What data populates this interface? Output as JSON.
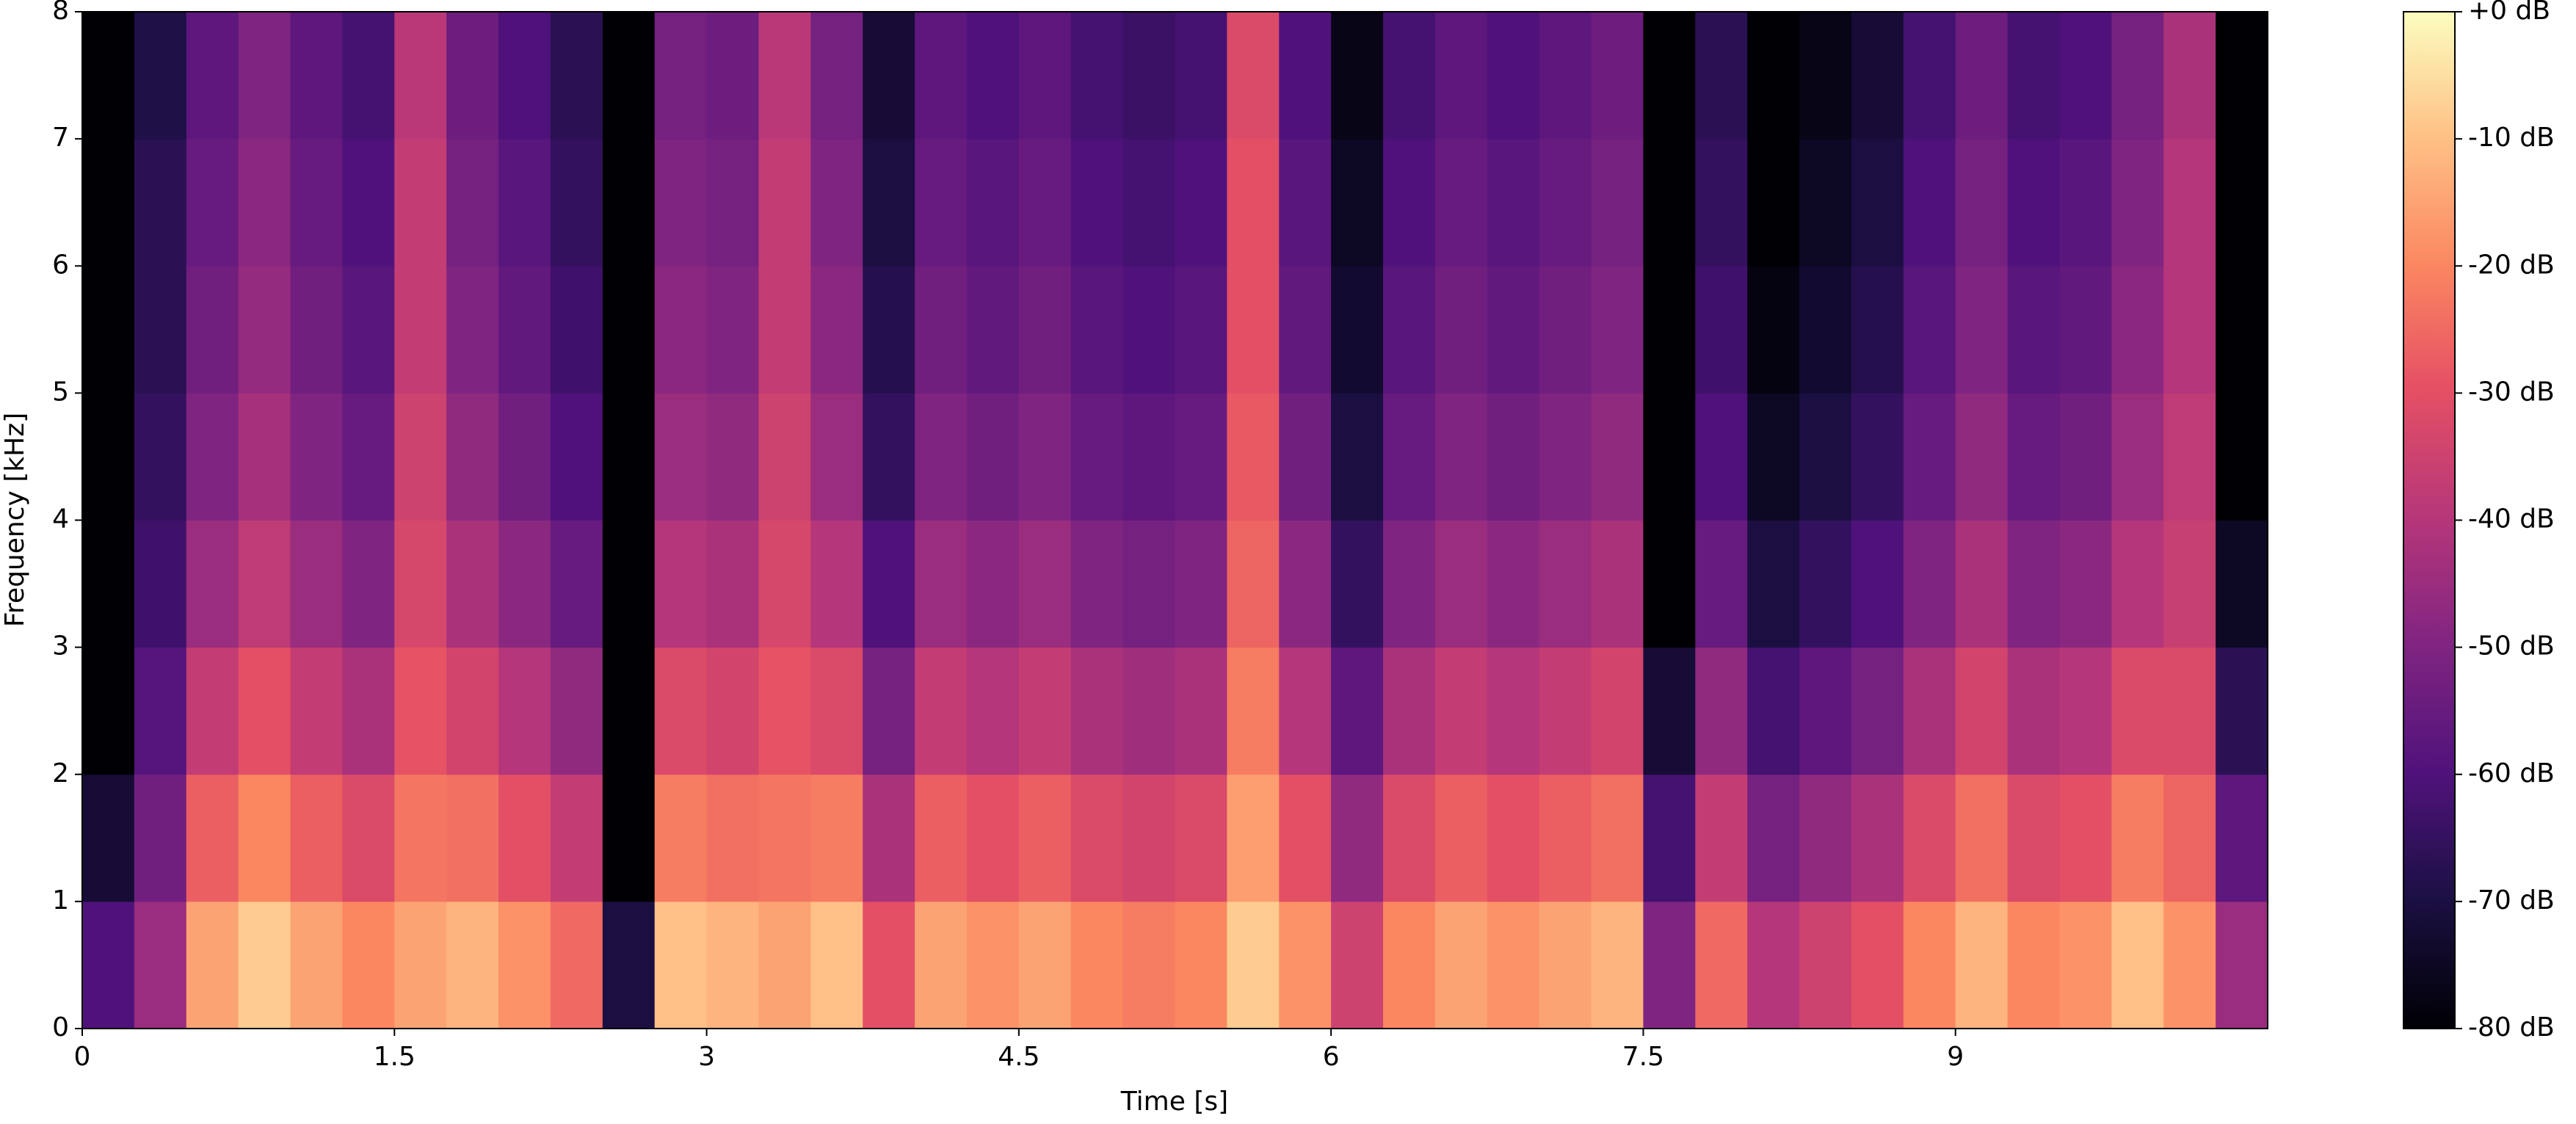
{
  "chart_data": {
    "type": "heatmap",
    "colormap": "magma",
    "xlabel": "Time [s]",
    "ylabel": "Frequency [kHz]",
    "x": [
      0,
      0.25,
      0.5,
      0.75,
      1,
      1.25,
      1.5,
      1.75,
      2,
      2.25,
      2.5,
      2.75,
      3,
      3.25,
      3.5,
      3.75,
      4,
      4.25,
      4.5,
      4.75,
      5,
      5.25,
      5.5,
      5.75,
      6,
      6.25,
      6.5,
      6.75,
      7,
      7.25,
      7.5,
      7.75,
      8,
      8.25,
      8.5,
      8.75,
      9,
      9.25,
      9.5,
      9.75,
      10,
      10.25,
      10.5
    ],
    "y": [
      0,
      1,
      2,
      3,
      4,
      5,
      6,
      7,
      8
    ],
    "z": [
      [
        -60,
        -45,
        -15,
        -8,
        -15,
        -20,
        -15,
        -12,
        -18,
        -25,
        -70,
        -10,
        -12,
        -15,
        -10,
        -30,
        -15,
        -18,
        -15,
        -20,
        -22,
        -20,
        -8,
        -18,
        -35,
        -20,
        -15,
        -18,
        -15,
        -12,
        -50,
        -25,
        -40,
        -35,
        -30,
        -20,
        -12,
        -20,
        -18,
        -10,
        -18,
        -45
      ],
      [
        -72,
        -53,
        -27,
        -20,
        -27,
        -32,
        -23,
        -24,
        -30,
        -37,
        -80,
        -22,
        -24,
        -23,
        -22,
        -42,
        -27,
        -30,
        -27,
        -32,
        -34,
        -32,
        -16,
        -30,
        -47,
        -32,
        -27,
        -30,
        -27,
        -24,
        -62,
        -37,
        -52,
        -47,
        -42,
        -32,
        -24,
        -32,
        -30,
        -22,
        -26,
        -57
      ],
      [
        -80,
        -59,
        -37,
        -30,
        -37,
        -42,
        -29,
        -34,
        -40,
        -47,
        -80,
        -32,
        -34,
        -29,
        -32,
        -52,
        -37,
        -40,
        -37,
        -42,
        -44,
        -42,
        -22,
        -40,
        -57,
        -42,
        -37,
        -40,
        -37,
        -34,
        -72,
        -47,
        -62,
        -57,
        -52,
        -42,
        -34,
        -42,
        -40,
        -32,
        -32,
        -67
      ],
      [
        -80,
        -63,
        -45,
        -38,
        -45,
        -50,
        -33,
        -42,
        -48,
        -55,
        -80,
        -40,
        -42,
        -33,
        -40,
        -60,
        -45,
        -48,
        -45,
        -50,
        -52,
        -50,
        -26,
        -48,
        -65,
        -50,
        -45,
        -48,
        -45,
        -42,
        -80,
        -55,
        -70,
        -65,
        -60,
        -50,
        -42,
        -50,
        -48,
        -40,
        -36,
        -75
      ],
      [
        -80,
        -65,
        -50,
        -43,
        -50,
        -55,
        -35,
        -47,
        -53,
        -60,
        -80,
        -45,
        -47,
        -35,
        -45,
        -65,
        -50,
        -53,
        -50,
        -55,
        -57,
        -55,
        -28,
        -53,
        -70,
        -55,
        -50,
        -53,
        -50,
        -47,
        -80,
        -60,
        -75,
        -70,
        -65,
        -55,
        -47,
        -55,
        -53,
        -45,
        -38,
        -80
      ],
      [
        -80,
        -67,
        -53,
        -46,
        -53,
        -58,
        -37,
        -50,
        -56,
        -63,
        -80,
        -48,
        -50,
        -37,
        -48,
        -68,
        -53,
        -56,
        -53,
        -58,
        -60,
        -58,
        -30,
        -56,
        -73,
        -58,
        -53,
        -56,
        -53,
        -50,
        -80,
        -63,
        -78,
        -73,
        -68,
        -58,
        -50,
        -58,
        -56,
        -48,
        -40,
        -80
      ],
      [
        -80,
        -67,
        -55,
        -48,
        -55,
        -60,
        -37,
        -52,
        -58,
        -65,
        -80,
        -50,
        -52,
        -37,
        -50,
        -70,
        -55,
        -58,
        -55,
        -60,
        -62,
        -60,
        -30,
        -58,
        -75,
        -60,
        -55,
        -58,
        -55,
        -52,
        -80,
        -65,
        -80,
        -75,
        -70,
        -60,
        -52,
        -60,
        -58,
        -50,
        -40,
        -80
      ],
      [
        -80,
        -69,
        -57,
        -50,
        -57,
        -62,
        -39,
        -54,
        -60,
        -67,
        -80,
        -52,
        -54,
        -39,
        -52,
        -72,
        -57,
        -60,
        -57,
        -62,
        -64,
        -62,
        -32,
        -60,
        -77,
        -62,
        -57,
        -60,
        -57,
        -54,
        -80,
        -67,
        -80,
        -77,
        -72,
        -62,
        -54,
        -62,
        -60,
        -52,
        -42,
        -80
      ]
    ],
    "xlim": [
      0,
      10.5
    ],
    "ylim": [
      0,
      8
    ],
    "xticks": [
      0,
      1.5,
      3,
      4.5,
      6,
      7.5,
      9
    ],
    "yticks": [
      0,
      1,
      2,
      3,
      4,
      5,
      6,
      7,
      8
    ],
    "clim": [
      -80,
      0
    ],
    "cticks": [
      {
        "value": 0,
        "label": "+0 dB"
      },
      {
        "value": -10,
        "label": "-10 dB"
      },
      {
        "value": -20,
        "label": "-20 dB"
      },
      {
        "value": -30,
        "label": "-30 dB"
      },
      {
        "value": -40,
        "label": "-40 dB"
      },
      {
        "value": -50,
        "label": "-50 dB"
      },
      {
        "value": -60,
        "label": "-60 dB"
      },
      {
        "value": -70,
        "label": "-70 dB"
      },
      {
        "value": -80,
        "label": "-80 dB"
      }
    ]
  }
}
